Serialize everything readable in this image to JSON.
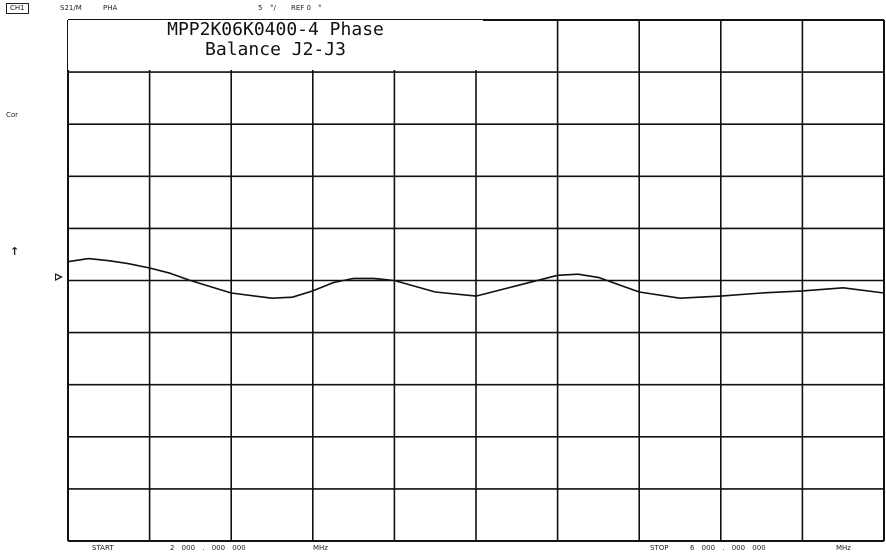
{
  "header": {
    "channel": "CH1",
    "measurement": "S21/M",
    "format": "PHA",
    "scale_value": "5",
    "scale_unit": "°/",
    "reference": "REF 0",
    "reference_unit": "°"
  },
  "side": {
    "correction": "Cor",
    "marker_arrow": "↑"
  },
  "footer": {
    "start_label": "START",
    "start_value": "2 000 . 000 000",
    "start_unit": "MHz",
    "stop_label": "STOP",
    "stop_value": "6 000 . 000 000",
    "stop_unit": "MHz"
  },
  "chart_data": {
    "type": "line",
    "title_line1": "MPP2K06K0400-4 Phase",
    "title_line2": "Balance J2-J3",
    "x_unit": "MHz",
    "xlim": [
      2000,
      6000
    ],
    "y_unit": "deg",
    "ylim": [
      -25,
      25
    ],
    "y_per_div": 5,
    "reference_value": 0,
    "grid": true,
    "grid_divisions": {
      "x": 10,
      "y": 10
    },
    "series": [
      {
        "x": [
          2000,
          2100,
          2200,
          2300,
          2400,
          2500,
          2600,
          2800,
          3000,
          3100,
          3200,
          3300,
          3400,
          3500,
          3600,
          3800,
          4000,
          4200,
          4400,
          4500,
          4600,
          4800,
          5000,
          5200,
          5400,
          5600,
          5800,
          6000
        ],
        "y": [
          1.8,
          2.1,
          1.9,
          1.6,
          1.2,
          0.7,
          0.0,
          -1.2,
          -1.7,
          -1.6,
          -1.0,
          -0.2,
          0.2,
          0.2,
          0.0,
          -1.1,
          -1.5,
          -0.5,
          0.5,
          0.6,
          0.3,
          -1.1,
          -1.7,
          -1.5,
          -1.2,
          -1.0,
          -0.7,
          -1.2
        ]
      }
    ]
  }
}
